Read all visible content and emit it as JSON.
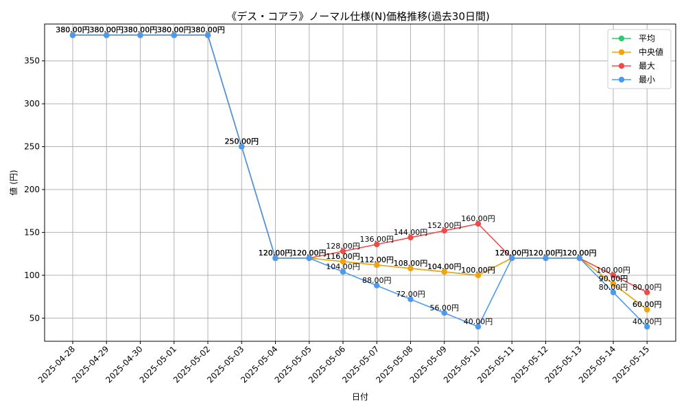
{
  "chart_data": {
    "type": "line",
    "title": "《デス・コアラ》ノーマル仕様(N)価格推移(過去30日間)",
    "xlabel": "日付",
    "ylabel": "値 (円)",
    "x": [
      "2025-04-28",
      "2025-04-29",
      "2025-04-30",
      "2025-05-01",
      "2025-05-02",
      "2025-05-03",
      "2025-05-04",
      "2025-05-05",
      "2025-05-06",
      "2025-05-07",
      "2025-05-08",
      "2025-05-09",
      "2025-05-10",
      "2025-05-11",
      "2025-05-12",
      "2025-05-13",
      "2025-05-14",
      "2025-05-15"
    ],
    "ylim": [
      23,
      393
    ],
    "yticks": [
      50,
      100,
      150,
      200,
      250,
      300,
      350
    ],
    "grid": true,
    "legend_position": "top-right",
    "value_suffix": "円",
    "series": [
      {
        "name": "平均",
        "color": "#2ecc71",
        "values": [
          380,
          380,
          380,
          380,
          380,
          250,
          120,
          120,
          116,
          112,
          108,
          104,
          100,
          120,
          120,
          120,
          90,
          60
        ]
      },
      {
        "name": "中央値",
        "color": "#f5a30a",
        "values": [
          380,
          380,
          380,
          380,
          380,
          250,
          120,
          120,
          116,
          112,
          108,
          104,
          100,
          120,
          120,
          120,
          90,
          60
        ]
      },
      {
        "name": "最大",
        "color": "#ef4b4b",
        "values": [
          380,
          380,
          380,
          380,
          380,
          250,
          120,
          120,
          128,
          136,
          144,
          152,
          160,
          120,
          120,
          120,
          100,
          80
        ]
      },
      {
        "name": "最小",
        "color": "#4a9aef",
        "values": [
          380,
          380,
          380,
          380,
          380,
          250,
          120,
          120,
          104,
          88,
          72,
          56,
          40,
          120,
          120,
          120,
          80,
          40
        ]
      }
    ]
  }
}
